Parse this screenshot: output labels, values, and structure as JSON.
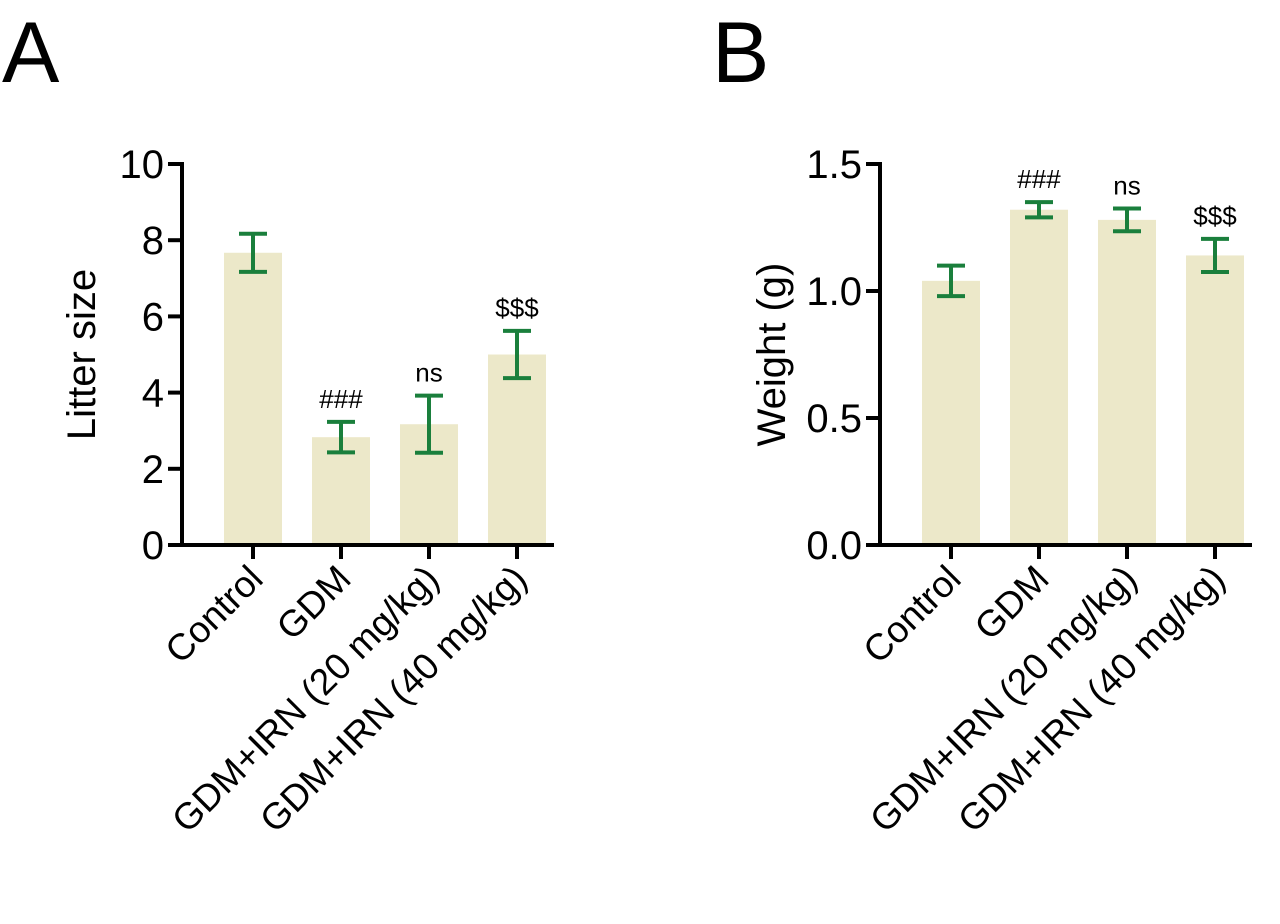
{
  "colors": {
    "bar": "#ece8c9",
    "error_bar": "#1a7f3c",
    "axis": "#000000"
  },
  "chart_data": [
    {
      "panel_label": "A",
      "type": "bar",
      "categories": [
        "Control",
        "GDM",
        "GDM+IRN (20 mg/kg)",
        "GDM+IRN (40 mg/kg)"
      ],
      "values": [
        7.67,
        2.83,
        3.17,
        5.0
      ],
      "errors": [
        0.5,
        0.4,
        0.75,
        0.62
      ],
      "annotations": [
        "",
        "###",
        "ns",
        "$$$"
      ],
      "xlabel": "",
      "ylabel": "Litter size",
      "ylim": [
        0,
        10
      ],
      "yticks": [
        0,
        2,
        4,
        6,
        8,
        10
      ],
      "ytick_labels": [
        "0",
        "2",
        "4",
        "6",
        "8",
        "10"
      ],
      "grid": false
    },
    {
      "panel_label": "B",
      "type": "bar",
      "categories": [
        "Control",
        "GDM",
        "GDM+IRN (20 mg/kg)",
        "GDM+IRN (40 mg/kg)"
      ],
      "values": [
        1.04,
        1.32,
        1.28,
        1.14
      ],
      "errors": [
        0.06,
        0.03,
        0.045,
        0.065
      ],
      "annotations": [
        "",
        "###",
        "ns",
        "$$$"
      ],
      "xlabel": "",
      "ylabel": "Weight (g)",
      "ylim": [
        0,
        1.5
      ],
      "yticks": [
        0,
        0.5,
        1.0,
        1.5
      ],
      "ytick_labels": [
        "0.0",
        "0.5",
        "1.0",
        "1.5"
      ],
      "grid": false
    }
  ]
}
